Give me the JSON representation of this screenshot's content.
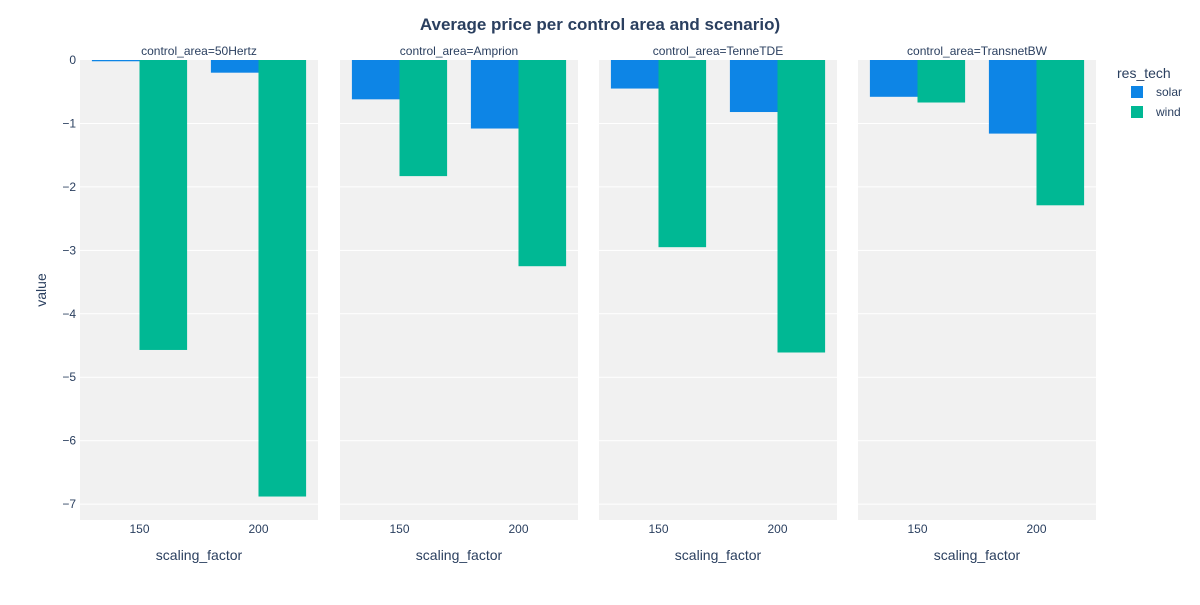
{
  "chart_data": {
    "type": "bar",
    "title": "Average price per control area and scenario)",
    "xlabel": "scaling_factor",
    "ylabel": "value",
    "ylim": [
      -7.25,
      0
    ],
    "yticks": [
      0,
      -1,
      -2,
      -3,
      -4,
      -5,
      -6,
      -7
    ],
    "ytick_labels": [
      "0",
      "−1",
      "−2",
      "−3",
      "−4",
      "−5",
      "−6",
      "−7"
    ],
    "categories": [
      "150",
      "200"
    ],
    "grid": true,
    "legend": {
      "title": "res_tech",
      "placement": "right",
      "entries": [
        "solar",
        "wind"
      ]
    },
    "colors": {
      "solar": "#0d85e6",
      "wind": "#00b894",
      "plot_bg": "#f1f1f1",
      "title": "#2a3f5f"
    },
    "facets": [
      {
        "label": "control_area=50Hertz",
        "series": [
          {
            "name": "solar",
            "values": [
              -0.02,
              -0.2
            ]
          },
          {
            "name": "wind",
            "values": [
              -4.57,
              -6.88
            ]
          }
        ]
      },
      {
        "label": "control_area=Amprion",
        "series": [
          {
            "name": "solar",
            "values": [
              -0.62,
              -1.08
            ]
          },
          {
            "name": "wind",
            "values": [
              -1.83,
              -3.25
            ]
          }
        ]
      },
      {
        "label": "control_area=TenneTDE",
        "series": [
          {
            "name": "solar",
            "values": [
              -0.45,
              -0.82
            ]
          },
          {
            "name": "wind",
            "values": [
              -2.95,
              -4.61
            ]
          }
        ]
      },
      {
        "label": "control_area=TransnetBW",
        "series": [
          {
            "name": "solar",
            "values": [
              -0.58,
              -1.16
            ]
          },
          {
            "name": "wind",
            "values": [
              -0.67,
              -2.29
            ]
          }
        ]
      }
    ]
  }
}
